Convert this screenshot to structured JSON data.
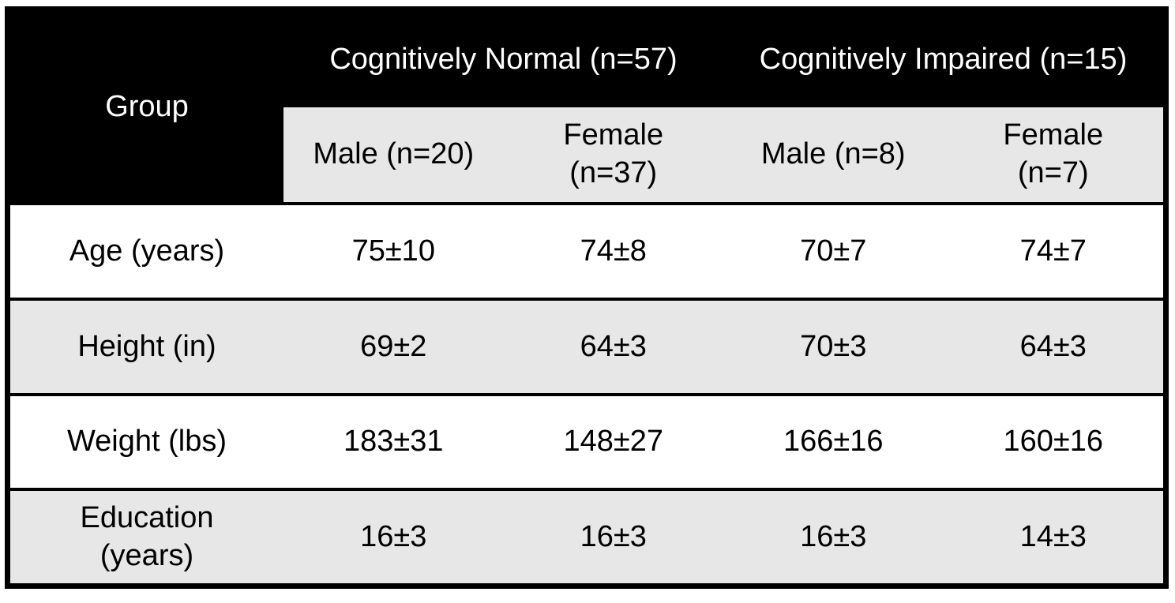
{
  "table": {
    "corner_header": "Group",
    "group_headers": [
      {
        "label": "Cognitively Normal (n=57)"
      },
      {
        "label": "Cognitively Impaired (n=15)"
      }
    ],
    "sub_headers": [
      "Male (n=20)",
      "Female\n(n=37)",
      "Male (n=8)",
      "Female\n(n=7)"
    ],
    "rows": [
      {
        "label": "Age (years)",
        "values": [
          "75±10",
          "74±8",
          "70±7",
          "74±7"
        ]
      },
      {
        "label": "Height (in)",
        "values": [
          "69±2",
          "64±3",
          "70±3",
          "64±3"
        ]
      },
      {
        "label": "Weight (lbs)",
        "values": [
          "183±31",
          "148±27",
          "166±16",
          "160±16"
        ]
      },
      {
        "label": "Education\n(years)",
        "values": [
          "16±3",
          "16±3",
          "16±3",
          "14±3"
        ]
      }
    ],
    "colors": {
      "header_bg": "#000000",
      "header_text": "#ffffff",
      "alt_row_bg": "#e7e7e7",
      "row_bg": "#ffffff",
      "border": "#000000"
    }
  }
}
